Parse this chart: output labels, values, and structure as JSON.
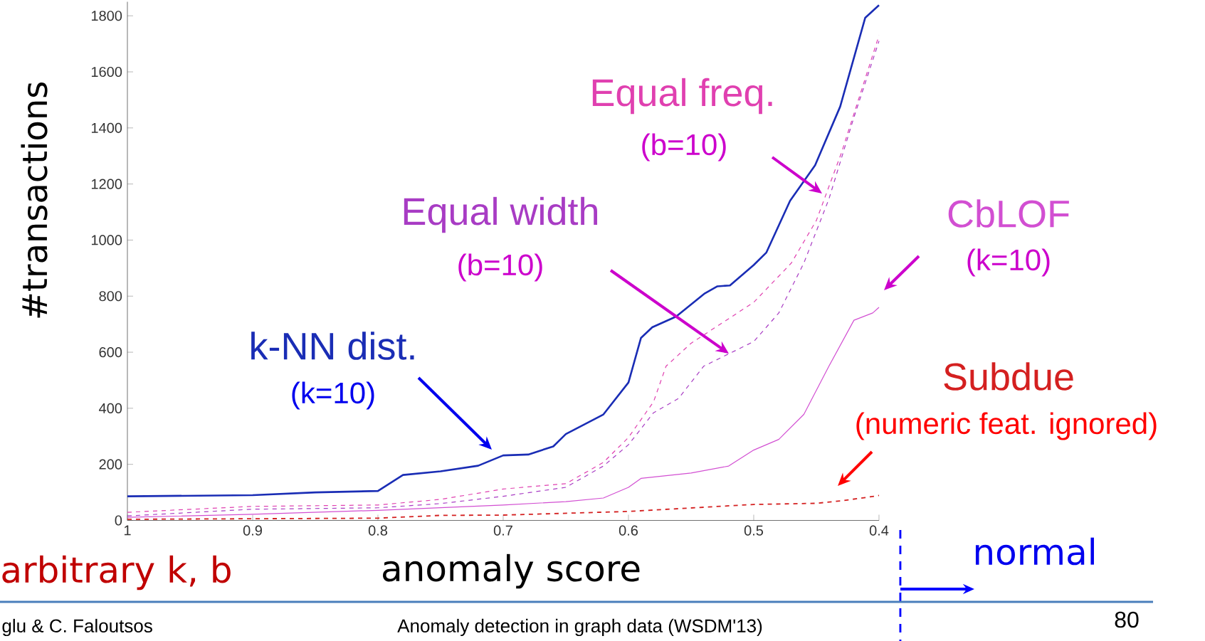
{
  "chart_data": {
    "type": "line",
    "xlabel": "anomaly score",
    "ylabel": "#transactions",
    "xlim": [
      1,
      0.4
    ],
    "ylim": [
      0,
      1850
    ],
    "xticks": [
      1,
      0.9,
      0.8,
      0.7,
      0.6,
      0.5,
      0.4
    ],
    "yticks": [
      0,
      200,
      400,
      600,
      800,
      1000,
      1200,
      1400,
      1600,
      1800
    ],
    "series": [
      {
        "name": "k-NN dist.",
        "color": "#1a2db5",
        "line_style": "solid",
        "x": [
          1,
          0.9,
          0.85,
          0.8,
          0.78,
          0.75,
          0.72,
          0.7,
          0.68,
          0.66,
          0.65,
          0.62,
          0.6,
          0.59,
          0.581,
          0.562,
          0.539,
          0.529,
          0.519,
          0.5,
          0.49,
          0.471,
          0.451,
          0.431,
          0.411,
          0.4
        ],
        "values": [
          86,
          90,
          100,
          105,
          162,
          175,
          195,
          232,
          235,
          264,
          308,
          378,
          492,
          651,
          689,
          727,
          810,
          835,
          838,
          911,
          955,
          1140,
          1267,
          1476,
          1793,
          1838
        ]
      },
      {
        "name": "Equal freq.",
        "color": "#e040b0",
        "line_style": "dashed",
        "x": [
          1,
          0.9,
          0.8,
          0.75,
          0.7,
          0.65,
          0.62,
          0.6,
          0.58,
          0.57,
          0.55,
          0.5,
          0.47,
          0.45,
          0.43,
          0.4
        ],
        "values": [
          29,
          50,
          55,
          75,
          112,
          131,
          207,
          296,
          423,
          550,
          632,
          778,
          918,
          1070,
          1311,
          1730
        ]
      },
      {
        "name": "Equal width",
        "color": "#a83cc4",
        "line_style": "dashed",
        "x": [
          1,
          0.9,
          0.8,
          0.75,
          0.7,
          0.65,
          0.62,
          0.6,
          0.58,
          0.56,
          0.54,
          0.52,
          0.5,
          0.48,
          0.46,
          0.44,
          0.42,
          0.4
        ],
        "values": [
          16,
          40,
          45,
          60,
          86,
          118,
          194,
          270,
          384,
          435,
          550,
          594,
          638,
          740,
          918,
          1146,
          1438,
          1710
        ]
      },
      {
        "name": "CbLOF",
        "color": "#d24fd2",
        "line_style": "solid",
        "x": [
          1,
          0.9,
          0.8,
          0.7,
          0.65,
          0.62,
          0.6,
          0.59,
          0.55,
          0.52,
          0.5,
          0.48,
          0.46,
          0.44,
          0.42,
          0.405,
          0.4
        ],
        "values": [
          11,
          22,
          36,
          55,
          67,
          80,
          118,
          150,
          169,
          194,
          251,
          289,
          378,
          550,
          714,
          740,
          760
        ]
      },
      {
        "name": "Subdue",
        "color": "#d42020",
        "line_style": "dashed",
        "x": [
          1,
          0.9,
          0.8,
          0.75,
          0.7,
          0.6,
          0.5,
          0.45,
          0.43,
          0.41,
          0.4
        ],
        "values": [
          4,
          6,
          8,
          18,
          19,
          32,
          57,
          61,
          70,
          82,
          89
        ]
      }
    ],
    "annotations": [
      "(k=10)",
      "(b=10)",
      "(b=10)",
      "(k=10)",
      "(numeric feat. ignored)",
      "arbitrary k, b",
      "normal",
      "glu & C. Faloutsos",
      "Anomaly detection in graph data (WSDM'13)",
      "80"
    ]
  }
}
